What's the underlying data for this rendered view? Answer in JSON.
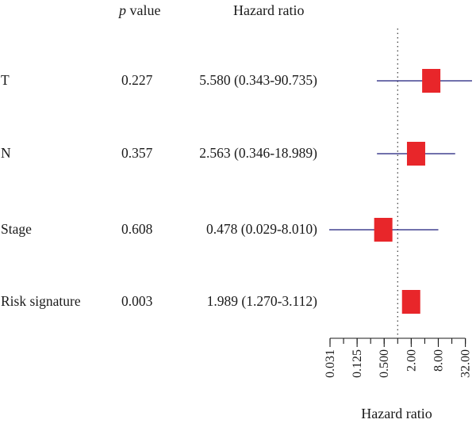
{
  "chart_data": {
    "type": "forest",
    "columns": {
      "label": "",
      "p_value": {
        "prefix": "p",
        "suffix": " value"
      },
      "hazard_ratio": "Hazard ratio"
    },
    "rows": [
      {
        "label": "T",
        "p_value": "0.227",
        "hr_text": "5.580 (0.343-90.735)",
        "hr": 5.58,
        "lower": 0.343,
        "upper": 90.735
      },
      {
        "label": "N",
        "p_value": "0.357",
        "hr_text": "2.563 (0.346-18.989)",
        "hr": 2.563,
        "lower": 0.346,
        "upper": 18.989
      },
      {
        "label": "Stage",
        "p_value": "0.608",
        "hr_text": "0.478 (0.029-8.010)",
        "hr": 0.478,
        "lower": 0.029,
        "upper": 8.01
      },
      {
        "label": "Risk signature",
        "p_value": "0.003",
        "hr_text": "1.989 (1.270-3.112)",
        "hr": 1.989,
        "lower": 1.27,
        "upper": 3.112
      }
    ],
    "xscale": "log2",
    "xlim": [
      0.03125,
      45
    ],
    "xticks": [
      0.03125,
      0.125,
      0.5,
      2,
      8,
      32
    ],
    "xtick_labels": [
      "0.031",
      "0.125",
      "0.500",
      "2.00",
      "8.00",
      "32.00"
    ],
    "reference_line": 1,
    "xlabel": "Hazard ratio",
    "colors": {
      "box": "#e8262a",
      "ci_line": "#1c1c7a",
      "text": "#1a1a1a",
      "axis": "#1a1a1a",
      "reference": "#444444"
    }
  }
}
